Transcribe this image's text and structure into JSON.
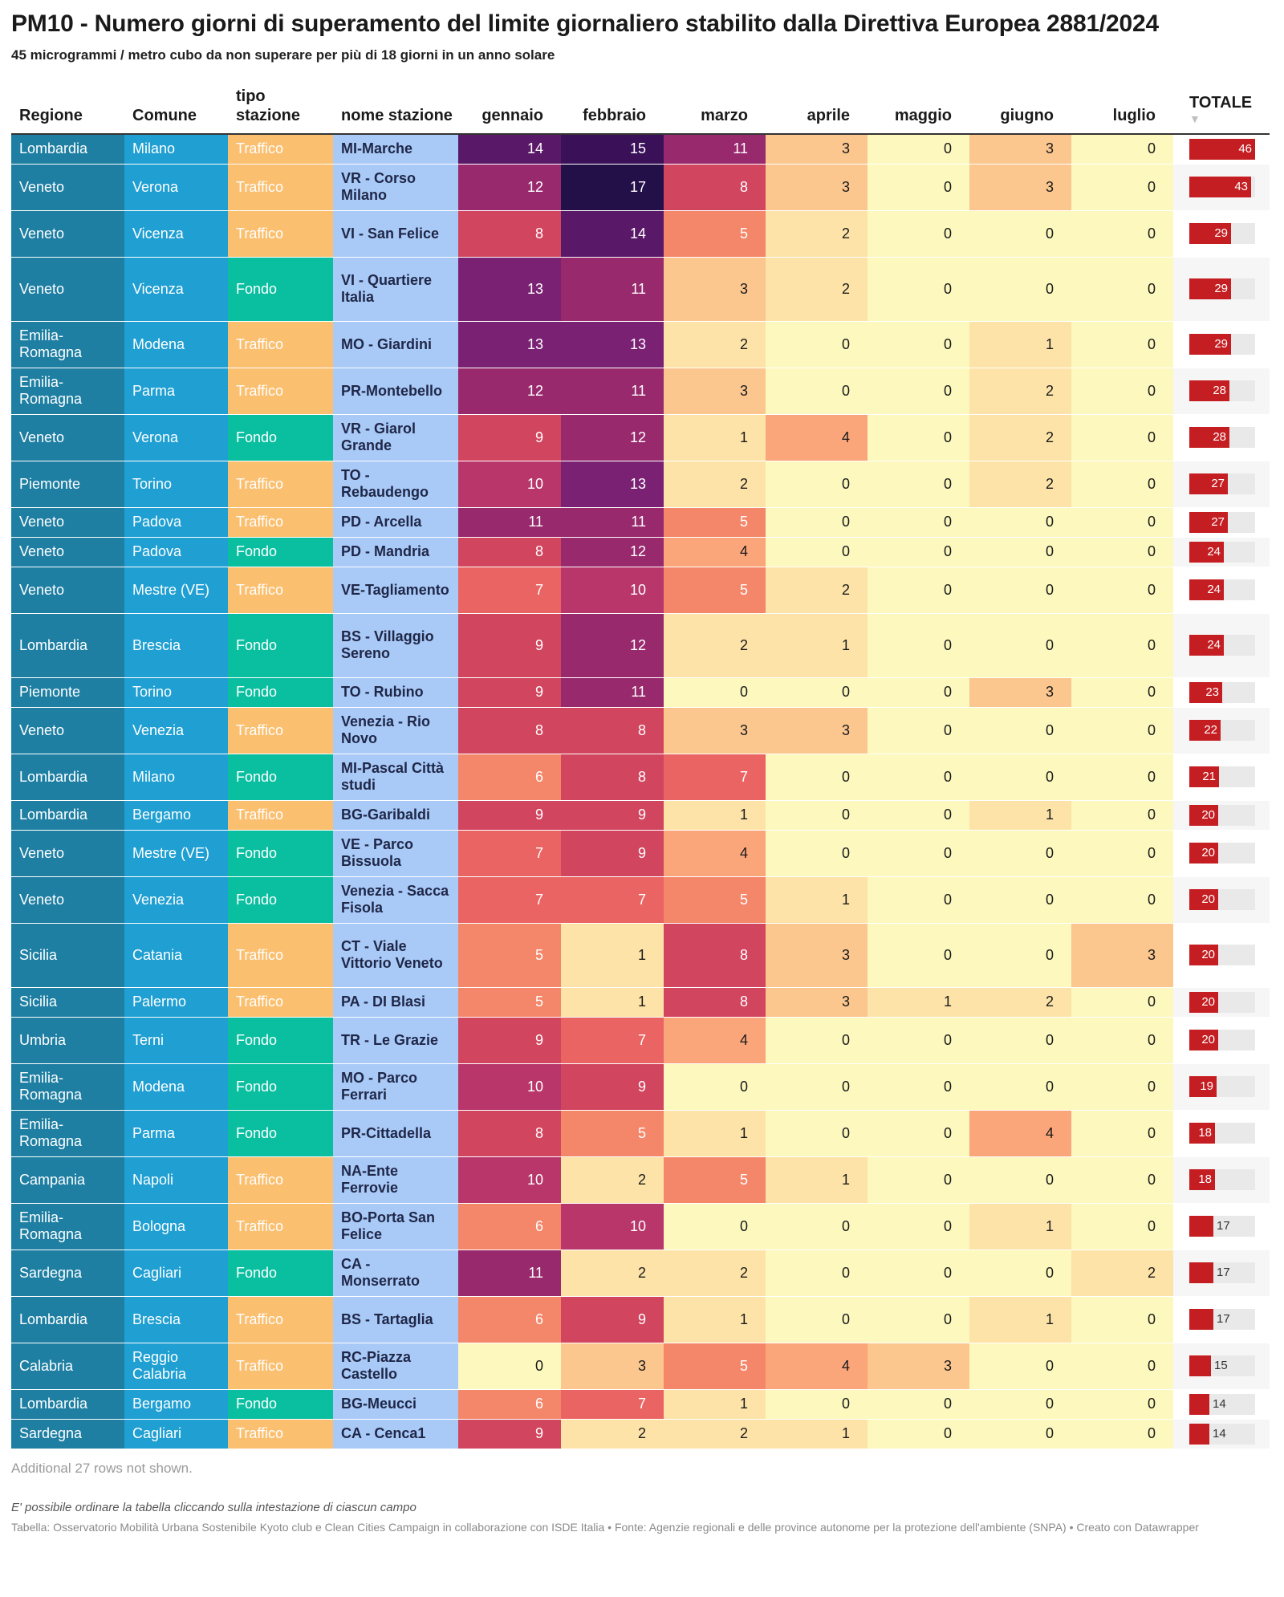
{
  "title": "PM10 - Numero giorni di superamento del limite giornaliero stabilito dalla Direttiva Europea 2881/2024",
  "subtitle": "45 microgrammi / metro cubo da non superare per più di 18 giorni in un anno solare",
  "colors": {
    "traffico": "#fbbf70",
    "fondo": "#0abfa0",
    "total_bar": "#c41e22",
    "heat_scale": [
      "#fcf8be",
      "#fde3a8",
      "#fcc68f",
      "#fba57a",
      "#f4876a",
      "#e96462",
      "#d2455f",
      "#b8366a",
      "#98296d",
      "#7a2174",
      "#5a1868",
      "#3a1159",
      "#241049"
    ]
  },
  "chart_data": {
    "type": "table",
    "sort_column": "TOTALE",
    "sort_order": "descending",
    "total_max": 46,
    "columns": [
      {
        "key": "regione",
        "label": "Regione"
      },
      {
        "key": "comune",
        "label": "Comune"
      },
      {
        "key": "tipo",
        "label": "tipo stazione"
      },
      {
        "key": "stazione",
        "label": "nome stazione"
      },
      {
        "key": "gennaio",
        "label": "gennaio"
      },
      {
        "key": "febbraio",
        "label": "febbraio"
      },
      {
        "key": "marzo",
        "label": "marzo"
      },
      {
        "key": "aprile",
        "label": "aprile"
      },
      {
        "key": "maggio",
        "label": "maggio"
      },
      {
        "key": "giugno",
        "label": "giugno"
      },
      {
        "key": "luglio",
        "label": "luglio"
      },
      {
        "key": "totale",
        "label": "TOTALE"
      }
    ],
    "rows": [
      {
        "regione": "Lombardia",
        "comune": "Milano",
        "tipo": "Traffico",
        "stazione": "MI-Marche",
        "months": [
          14,
          15,
          11,
          3,
          0,
          3,
          0
        ],
        "totale": 46
      },
      {
        "regione": "Veneto",
        "comune": "Verona",
        "tipo": "Traffico",
        "stazione": "VR - Corso Milano",
        "months": [
          12,
          17,
          8,
          3,
          0,
          3,
          0
        ],
        "totale": 43
      },
      {
        "regione": "Veneto",
        "comune": "Vicenza",
        "tipo": "Traffico",
        "stazione": "VI - San Felice",
        "months": [
          8,
          14,
          5,
          2,
          0,
          0,
          0
        ],
        "totale": 29
      },
      {
        "regione": "Veneto",
        "comune": "Vicenza",
        "tipo": "Fondo",
        "stazione": "VI - Quartiere Italia",
        "months": [
          13,
          11,
          3,
          2,
          0,
          0,
          0
        ],
        "totale": 29
      },
      {
        "regione": "Emilia-Romagna",
        "comune": "Modena",
        "tipo": "Traffico",
        "stazione": "MO - Giardini",
        "months": [
          13,
          13,
          2,
          0,
          0,
          1,
          0
        ],
        "totale": 29
      },
      {
        "regione": "Emilia-Romagna",
        "comune": "Parma",
        "tipo": "Traffico",
        "stazione": "PR-Montebello",
        "months": [
          12,
          11,
          3,
          0,
          0,
          2,
          0
        ],
        "totale": 28
      },
      {
        "regione": "Veneto",
        "comune": "Verona",
        "tipo": "Fondo",
        "stazione": "VR - Giarol Grande",
        "months": [
          9,
          12,
          1,
          4,
          0,
          2,
          0
        ],
        "totale": 28
      },
      {
        "regione": "Piemonte",
        "comune": "Torino",
        "tipo": "Traffico",
        "stazione": "TO - Rebaudengo",
        "months": [
          10,
          13,
          2,
          0,
          0,
          2,
          0
        ],
        "totale": 27
      },
      {
        "regione": "Veneto",
        "comune": "Padova",
        "tipo": "Traffico",
        "stazione": "PD - Arcella",
        "months": [
          11,
          11,
          5,
          0,
          0,
          0,
          0
        ],
        "totale": 27
      },
      {
        "regione": "Veneto",
        "comune": "Padova",
        "tipo": "Fondo",
        "stazione": "PD - Mandria",
        "months": [
          8,
          12,
          4,
          0,
          0,
          0,
          0
        ],
        "totale": 24
      },
      {
        "regione": "Veneto",
        "comune": "Mestre (VE)",
        "tipo": "Traffico",
        "stazione": "VE-Tagliamento",
        "months": [
          7,
          10,
          5,
          2,
          0,
          0,
          0
        ],
        "totale": 24
      },
      {
        "regione": "Lombardia",
        "comune": "Brescia",
        "tipo": "Fondo",
        "stazione": "BS - Villaggio Sereno",
        "months": [
          9,
          12,
          2,
          1,
          0,
          0,
          0
        ],
        "totale": 24
      },
      {
        "regione": "Piemonte",
        "comune": "Torino",
        "tipo": "Fondo",
        "stazione": "TO - Rubino",
        "months": [
          9,
          11,
          0,
          0,
          0,
          3,
          0
        ],
        "totale": 23
      },
      {
        "regione": "Veneto",
        "comune": "Venezia",
        "tipo": "Traffico",
        "stazione": "Venezia - Rio Novo",
        "months": [
          8,
          8,
          3,
          3,
          0,
          0,
          0
        ],
        "totale": 22
      },
      {
        "regione": "Lombardia",
        "comune": "Milano",
        "tipo": "Fondo",
        "stazione": "MI-Pascal Città studi",
        "months": [
          6,
          8,
          7,
          0,
          0,
          0,
          0
        ],
        "totale": 21
      },
      {
        "regione": "Lombardia",
        "comune": "Bergamo",
        "tipo": "Traffico",
        "stazione": "BG-Garibaldi",
        "months": [
          9,
          9,
          1,
          0,
          0,
          1,
          0
        ],
        "totale": 20
      },
      {
        "regione": "Veneto",
        "comune": "Mestre (VE)",
        "tipo": "Fondo",
        "stazione": "VE - Parco Bissuola",
        "months": [
          7,
          9,
          4,
          0,
          0,
          0,
          0
        ],
        "totale": 20
      },
      {
        "regione": "Veneto",
        "comune": "Venezia",
        "tipo": "Fondo",
        "stazione": "Venezia - Sacca Fisola",
        "months": [
          7,
          7,
          5,
          1,
          0,
          0,
          0
        ],
        "totale": 20
      },
      {
        "regione": "Sicilia",
        "comune": "Catania",
        "tipo": "Traffico",
        "stazione": "CT - Viale Vittorio Veneto",
        "months": [
          5,
          1,
          8,
          3,
          0,
          0,
          3
        ],
        "totale": 20
      },
      {
        "regione": "Sicilia",
        "comune": "Palermo",
        "tipo": "Traffico",
        "stazione": "PA - DI Blasi",
        "months": [
          5,
          1,
          8,
          3,
          1,
          2,
          0
        ],
        "totale": 20
      },
      {
        "regione": "Umbria",
        "comune": "Terni",
        "tipo": "Fondo",
        "stazione": "TR - Le Grazie",
        "months": [
          9,
          7,
          4,
          0,
          0,
          0,
          0
        ],
        "totale": 20
      },
      {
        "regione": "Emilia-Romagna",
        "comune": "Modena",
        "tipo": "Fondo",
        "stazione": "MO - Parco Ferrari",
        "months": [
          10,
          9,
          0,
          0,
          0,
          0,
          0
        ],
        "totale": 19
      },
      {
        "regione": "Emilia-Romagna",
        "comune": "Parma",
        "tipo": "Fondo",
        "stazione": "PR-Cittadella",
        "months": [
          8,
          5,
          1,
          0,
          0,
          4,
          0
        ],
        "totale": 18
      },
      {
        "regione": "Campania",
        "comune": "Napoli",
        "tipo": "Traffico",
        "stazione": "NA-Ente Ferrovie",
        "months": [
          10,
          2,
          5,
          1,
          0,
          0,
          0
        ],
        "totale": 18
      },
      {
        "regione": "Emilia-Romagna",
        "comune": "Bologna",
        "tipo": "Traffico",
        "stazione": "BO-Porta San Felice",
        "months": [
          6,
          10,
          0,
          0,
          0,
          1,
          0
        ],
        "totale": 17
      },
      {
        "regione": "Sardegna",
        "comune": "Cagliari",
        "tipo": "Fondo",
        "stazione": "CA - Monserrato",
        "months": [
          11,
          2,
          2,
          0,
          0,
          0,
          2
        ],
        "totale": 17
      },
      {
        "regione": "Lombardia",
        "comune": "Brescia",
        "tipo": "Traffico",
        "stazione": "BS - Tartaglia",
        "months": [
          6,
          9,
          1,
          0,
          0,
          1,
          0
        ],
        "totale": 17
      },
      {
        "regione": "Calabria",
        "comune": "Reggio Calabria",
        "tipo": "Traffico",
        "stazione": "RC-Piazza Castello",
        "months": [
          0,
          3,
          5,
          4,
          3,
          0,
          0
        ],
        "totale": 15
      },
      {
        "regione": "Lombardia",
        "comune": "Bergamo",
        "tipo": "Fondo",
        "stazione": "BG-Meucci",
        "months": [
          6,
          7,
          1,
          0,
          0,
          0,
          0
        ],
        "totale": 14
      },
      {
        "regione": "Sardegna",
        "comune": "Cagliari",
        "tipo": "Traffico",
        "stazione": "CA - Cenca1",
        "months": [
          9,
          2,
          2,
          1,
          0,
          0,
          0
        ],
        "totale": 14
      }
    ]
  },
  "footer": {
    "rows_not_shown": "Additional 27 rows not shown.",
    "note": "E' possibile ordinare la tabella cliccando sulla intestazione di ciascun campo",
    "source": "Tabella: Osservatorio Mobilità Urbana Sostenibile Kyoto club e Clean Cities Campaign in collaborazione con ISDE Italia • Fonte: Agenzie regionali e delle province autonome per la protezione dell'ambiente (SNPA) • Creato con Datawrapper"
  }
}
